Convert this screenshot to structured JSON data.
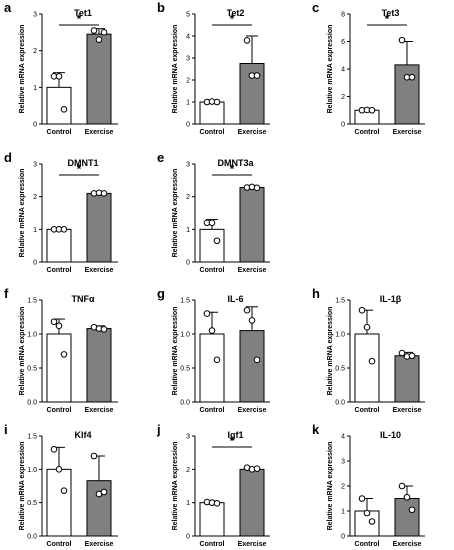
{
  "figure": {
    "category_labels": [
      "Control",
      "Exercise"
    ],
    "ylabel": "Relative mRNA expression",
    "significance_marker": "*",
    "colors": {
      "control_fill": "#ffffff",
      "exercise_fill": "#808080",
      "stroke": "#000000"
    }
  },
  "chart_data": [
    {
      "panel": "a",
      "title": "Tet1",
      "type": "bar",
      "ylabel": "Relative mRNA expression",
      "categories": [
        "Control",
        "Exercise"
      ],
      "values": [
        1.0,
        2.45
      ],
      "errors": [
        0.4,
        0.15
      ],
      "points": [
        [
          1.3,
          1.3,
          0.4
        ],
        [
          2.55,
          2.3,
          2.5
        ]
      ],
      "yticks": [
        "0",
        "1",
        "2",
        "3"
      ],
      "ylim": [
        0,
        3
      ],
      "significance": "*"
    },
    {
      "panel": "b",
      "title": "Tet2",
      "type": "bar",
      "ylabel": "Relative mRNA expression",
      "categories": [
        "Control",
        "Exercise"
      ],
      "values": [
        1.0,
        2.75
      ],
      "errors": [
        0.05,
        1.25
      ],
      "points": [
        [
          1.0,
          1.02,
          1.0
        ],
        [
          3.8,
          2.2,
          2.2
        ]
      ],
      "yticks": [
        "0",
        "1",
        "2",
        "3",
        "4",
        "5"
      ],
      "ylim": [
        0,
        5
      ],
      "significance": "*"
    },
    {
      "panel": "c",
      "title": "Tet3",
      "type": "bar",
      "ylabel": "Relative mRNA expression",
      "categories": [
        "Control",
        "Exercise"
      ],
      "values": [
        1.0,
        4.3
      ],
      "errors": [
        0.05,
        1.7
      ],
      "points": [
        [
          1.0,
          1.02,
          1.0
        ],
        [
          6.1,
          3.4,
          3.4
        ]
      ],
      "yticks": [
        "0",
        "2",
        "4",
        "6",
        "8"
      ],
      "ylim": [
        0,
        8
      ],
      "significance": "*"
    },
    {
      "panel": "d",
      "title": "DMNT1",
      "type": "bar",
      "ylabel": "Relative mRNA expression",
      "categories": [
        "Control",
        "Exercise"
      ],
      "values": [
        1.0,
        2.1
      ],
      "errors": [
        0.03,
        0.03
      ],
      "points": [
        [
          1.0,
          1.0,
          1.0
        ],
        [
          2.1,
          2.12,
          2.1
        ]
      ],
      "yticks": [
        "0",
        "1",
        "2",
        "3"
      ],
      "ylim": [
        0,
        3
      ],
      "significance": "*"
    },
    {
      "panel": "e",
      "title": "DMNT3a",
      "type": "bar",
      "ylabel": "Relative mRNA expression",
      "categories": [
        "Control",
        "Exercise"
      ],
      "values": [
        1.0,
        2.28
      ],
      "errors": [
        0.3,
        0.03
      ],
      "points": [
        [
          1.2,
          1.2,
          0.65
        ],
        [
          2.28,
          2.3,
          2.27
        ]
      ],
      "yticks": [
        "0",
        "1",
        "2",
        "3"
      ],
      "ylim": [
        0,
        3
      ],
      "significance": "*"
    },
    {
      "panel": "f",
      "title": "TNFα",
      "type": "bar",
      "ylabel": "Relative mRNA expression",
      "categories": [
        "Control",
        "Exercise"
      ],
      "values": [
        1.0,
        1.08
      ],
      "errors": [
        0.22,
        0.04
      ],
      "points": [
        [
          1.18,
          1.12,
          0.7
        ],
        [
          1.1,
          1.08,
          1.07
        ]
      ],
      "yticks": [
        "0.0",
        "0.5",
        "1.0",
        "1.5"
      ],
      "ylim": [
        0,
        1.5
      ],
      "significance": ""
    },
    {
      "panel": "g",
      "title": "IL-6",
      "type": "bar",
      "ylabel": "Relative mRNA expression",
      "categories": [
        "Control",
        "Exercise"
      ],
      "values": [
        1.0,
        1.05
      ],
      "errors": [
        0.32,
        0.35
      ],
      "points": [
        [
          1.3,
          1.05,
          0.62
        ],
        [
          1.35,
          1.2,
          0.62
        ]
      ],
      "yticks": [
        "0.0",
        "0.5",
        "1.0",
        "1.5"
      ],
      "ylim": [
        0,
        1.5
      ],
      "significance": ""
    },
    {
      "panel": "h",
      "title": "IL-1β",
      "type": "bar",
      "ylabel": "Relative mRNA expression",
      "categories": [
        "Control",
        "Exercise"
      ],
      "values": [
        1.0,
        0.68
      ],
      "errors": [
        0.35,
        0.05
      ],
      "points": [
        [
          1.35,
          1.1,
          0.6
        ],
        [
          0.72,
          0.67,
          0.68
        ]
      ],
      "yticks": [
        "0.0",
        "0.5",
        "1.0",
        "1.5"
      ],
      "ylim": [
        0,
        1.5
      ],
      "significance": ""
    },
    {
      "panel": "i",
      "title": "Klf4",
      "type": "bar",
      "ylabel": "Relative mRNA expression",
      "categories": [
        "Control",
        "Exercise"
      ],
      "values": [
        1.0,
        0.83
      ],
      "errors": [
        0.33,
        0.37
      ],
      "points": [
        [
          1.3,
          1.0,
          0.68
        ],
        [
          1.2,
          0.63,
          0.66
        ]
      ],
      "yticks": [
        "0.0",
        "0.5",
        "1.0",
        "1.5"
      ],
      "ylim": [
        0,
        1.5
      ],
      "significance": ""
    },
    {
      "panel": "j",
      "title": "Igf1",
      "type": "bar",
      "ylabel": "Relative mRNA expression",
      "categories": [
        "Control",
        "Exercise"
      ],
      "values": [
        1.0,
        2.0
      ],
      "errors": [
        0.05,
        0.05
      ],
      "points": [
        [
          1.02,
          1.0,
          0.98
        ],
        [
          2.05,
          2.0,
          2.02
        ]
      ],
      "yticks": [
        "0",
        "1",
        "2",
        "3"
      ],
      "ylim": [
        0,
        3
      ],
      "significance": "*"
    },
    {
      "panel": "k",
      "title": "IL-10",
      "type": "bar",
      "ylabel": "Relative mRNA expression",
      "categories": [
        "Control",
        "Exercise"
      ],
      "values": [
        1.0,
        1.5
      ],
      "errors": [
        0.5,
        0.5
      ],
      "points": [
        [
          1.5,
          0.92,
          0.58
        ],
        [
          2.0,
          1.55,
          1.05
        ]
      ],
      "yticks": [
        "0",
        "1",
        "2",
        "3",
        "4"
      ],
      "ylim": [
        0,
        4
      ],
      "significance": ""
    }
  ]
}
